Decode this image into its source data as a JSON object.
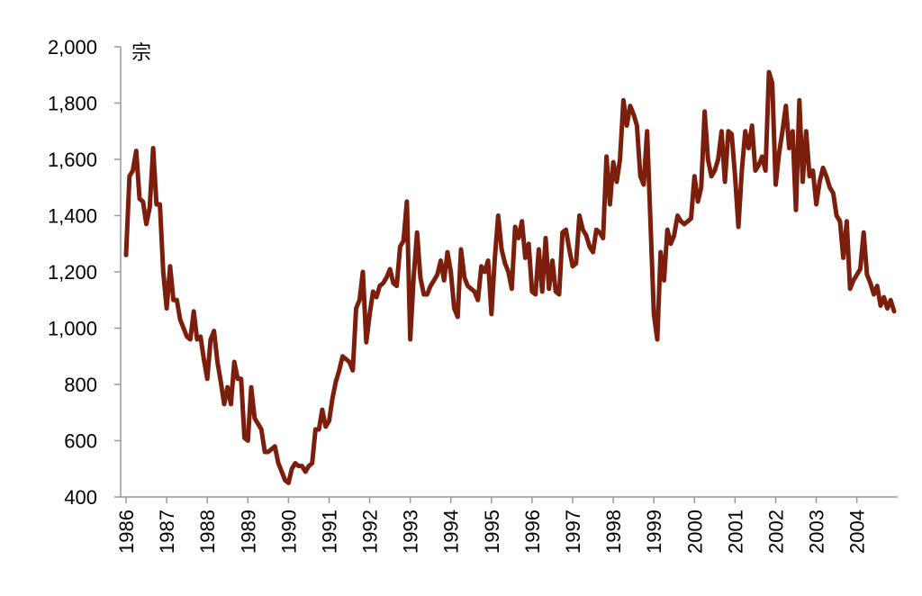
{
  "chart_data": {
    "type": "line",
    "title": "",
    "xlabel": "",
    "ylabel": "宗",
    "ylim": [
      400,
      2000
    ],
    "y_ticks": [
      "400",
      "600",
      "800",
      "1,000",
      "1,200",
      "1,400",
      "1,600",
      "1,800",
      "2,000"
    ],
    "y_tick_values": [
      400,
      600,
      800,
      1000,
      1200,
      1400,
      1600,
      1800,
      2000
    ],
    "x_ticks": [
      "1986",
      "1987",
      "1988",
      "1989",
      "1990",
      "1991",
      "1992",
      "1993",
      "1994",
      "1995",
      "1996",
      "1997",
      "1998",
      "1999",
      "2000",
      "2001",
      "2002",
      "2003",
      "2004"
    ],
    "xlim": [
      "1986-01",
      "2004-12"
    ],
    "grid": false,
    "legend": "none",
    "line_color": "#7B1E0C",
    "series": [
      {
        "x": [
          "1986-01",
          "1986-02",
          "1986-03",
          "1986-04",
          "1986-05",
          "1986-06",
          "1986-07",
          "1986-08",
          "1986-09",
          "1986-10",
          "1986-11",
          "1986-12",
          "1987-01",
          "1987-02",
          "1987-03",
          "1987-04",
          "1987-05",
          "1987-06",
          "1987-07",
          "1987-08",
          "1987-09",
          "1987-10",
          "1987-11",
          "1987-12",
          "1988-01",
          "1988-02",
          "1988-03",
          "1988-04",
          "1988-05",
          "1988-06",
          "1988-07",
          "1988-08",
          "1988-09",
          "1988-10",
          "1988-11",
          "1988-12",
          "1989-01",
          "1989-02",
          "1989-03",
          "1989-04",
          "1989-05",
          "1989-06",
          "1989-07",
          "1989-08",
          "1989-09",
          "1989-10",
          "1989-11",
          "1989-12",
          "1990-01",
          "1990-02",
          "1990-03",
          "1990-04",
          "1990-05",
          "1990-06",
          "1990-07",
          "1990-08",
          "1990-09",
          "1990-10",
          "1990-11",
          "1990-12",
          "1991-01",
          "1991-02",
          "1991-03",
          "1991-04",
          "1991-05",
          "1991-06",
          "1991-07",
          "1991-08",
          "1991-09",
          "1991-10",
          "1991-11",
          "1991-12",
          "1992-01",
          "1992-02",
          "1992-03",
          "1992-04",
          "1992-05",
          "1992-06",
          "1992-07",
          "1992-08",
          "1992-09",
          "1992-10",
          "1992-11",
          "1992-12",
          "1993-01",
          "1993-02",
          "1993-03",
          "1993-04",
          "1993-05",
          "1993-06",
          "1993-07",
          "1993-08",
          "1993-09",
          "1993-10",
          "1993-11",
          "1993-12",
          "1994-01",
          "1994-02",
          "1994-03",
          "1994-04",
          "1994-05",
          "1994-06",
          "1994-07",
          "1994-08",
          "1994-09",
          "1994-10",
          "1994-11",
          "1994-12",
          "1995-01",
          "1995-02",
          "1995-03",
          "1995-04",
          "1995-05",
          "1995-06",
          "1995-07",
          "1995-08",
          "1995-09",
          "1995-10",
          "1995-11",
          "1995-12",
          "1996-01",
          "1996-02",
          "1996-03",
          "1996-04",
          "1996-05",
          "1996-06",
          "1996-07",
          "1996-08",
          "1996-09",
          "1996-10",
          "1996-11",
          "1996-12",
          "1997-01",
          "1997-02",
          "1997-03",
          "1997-04",
          "1997-05",
          "1997-06",
          "1997-07",
          "1997-08",
          "1997-09",
          "1997-10",
          "1997-11",
          "1997-12",
          "1998-01",
          "1998-02",
          "1998-03",
          "1998-04",
          "1998-05",
          "1998-06",
          "1998-07",
          "1998-08",
          "1998-09",
          "1998-10",
          "1998-11",
          "1998-12",
          "1999-01",
          "1999-02",
          "1999-03",
          "1999-04",
          "1999-05",
          "1999-06",
          "1999-07",
          "1999-08",
          "1999-09",
          "1999-10",
          "1999-11",
          "1999-12",
          "2000-01",
          "2000-02",
          "2000-03",
          "2000-04",
          "2000-05",
          "2000-06",
          "2000-07",
          "2000-08",
          "2000-09",
          "2000-10",
          "2000-11",
          "2000-12",
          "2001-01",
          "2001-02",
          "2001-03",
          "2001-04",
          "2001-05",
          "2001-06",
          "2001-07",
          "2001-08",
          "2001-09",
          "2001-10",
          "2001-11",
          "2001-12",
          "2002-01",
          "2002-02",
          "2002-03",
          "2002-04",
          "2002-05",
          "2002-06",
          "2002-07",
          "2002-08",
          "2002-09",
          "2002-10",
          "2002-11",
          "2002-12",
          "2003-01",
          "2003-02",
          "2003-03",
          "2003-04",
          "2003-05",
          "2003-06",
          "2003-07",
          "2003-08",
          "2003-09",
          "2003-10",
          "2003-11",
          "2003-12",
          "2004-01",
          "2004-02",
          "2004-03",
          "2004-04",
          "2004-05",
          "2004-06",
          "2004-07",
          "2004-08",
          "2004-09",
          "2004-10",
          "2004-11",
          "2004-12"
        ],
        "values": [
          1260,
          1540,
          1560,
          1630,
          1460,
          1450,
          1370,
          1430,
          1640,
          1440,
          1440,
          1200,
          1070,
          1220,
          1100,
          1100,
          1030,
          1000,
          970,
          960,
          1060,
          960,
          970,
          890,
          820,
          960,
          990,
          880,
          810,
          730,
          790,
          730,
          880,
          820,
          820,
          610,
          600,
          790,
          680,
          660,
          640,
          560,
          560,
          570,
          580,
          520,
          490,
          460,
          450,
          500,
          520,
          510,
          510,
          490,
          510,
          520,
          640,
          640,
          710,
          650,
          670,
          750,
          810,
          850,
          900,
          890,
          880,
          850,
          1070,
          1100,
          1200,
          950,
          1050,
          1130,
          1110,
          1150,
          1160,
          1180,
          1210,
          1160,
          1150,
          1290,
          1310,
          1450,
          960,
          1180,
          1340,
          1180,
          1120,
          1120,
          1150,
          1170,
          1190,
          1240,
          1170,
          1270,
          1200,
          1070,
          1040,
          1280,
          1180,
          1150,
          1140,
          1130,
          1100,
          1220,
          1200,
          1240,
          1050,
          1250,
          1400,
          1280,
          1230,
          1200,
          1140,
          1360,
          1320,
          1380,
          1250,
          1300,
          1130,
          1120,
          1280,
          1130,
          1320,
          1140,
          1240,
          1130,
          1120,
          1340,
          1350,
          1280,
          1220,
          1230,
          1400,
          1350,
          1330,
          1290,
          1270,
          1350,
          1340,
          1320,
          1610,
          1440,
          1590,
          1520,
          1600,
          1810,
          1720,
          1790,
          1760,
          1720,
          1540,
          1510,
          1700,
          1380,
          1050,
          960,
          1270,
          1170,
          1350,
          1300,
          1330,
          1400,
          1380,
          1370,
          1380,
          1390,
          1540,
          1450,
          1500,
          1770,
          1600,
          1540,
          1560,
          1600,
          1700,
          1520,
          1700,
          1690,
          1540,
          1360,
          1560,
          1700,
          1640,
          1720,
          1560,
          1580,
          1610,
          1560,
          1910,
          1870,
          1510,
          1620,
          1700,
          1790,
          1640,
          1700,
          1420,
          1810,
          1520,
          1700,
          1540,
          1560,
          1440,
          1520,
          1570,
          1540,
          1500,
          1480,
          1400,
          1380,
          1250,
          1380,
          1140,
          1170,
          1190,
          1210,
          1340,
          1190,
          1160,
          1120,
          1150,
          1080,
          1110,
          1070,
          1100,
          1060
        ]
      }
    ]
  }
}
